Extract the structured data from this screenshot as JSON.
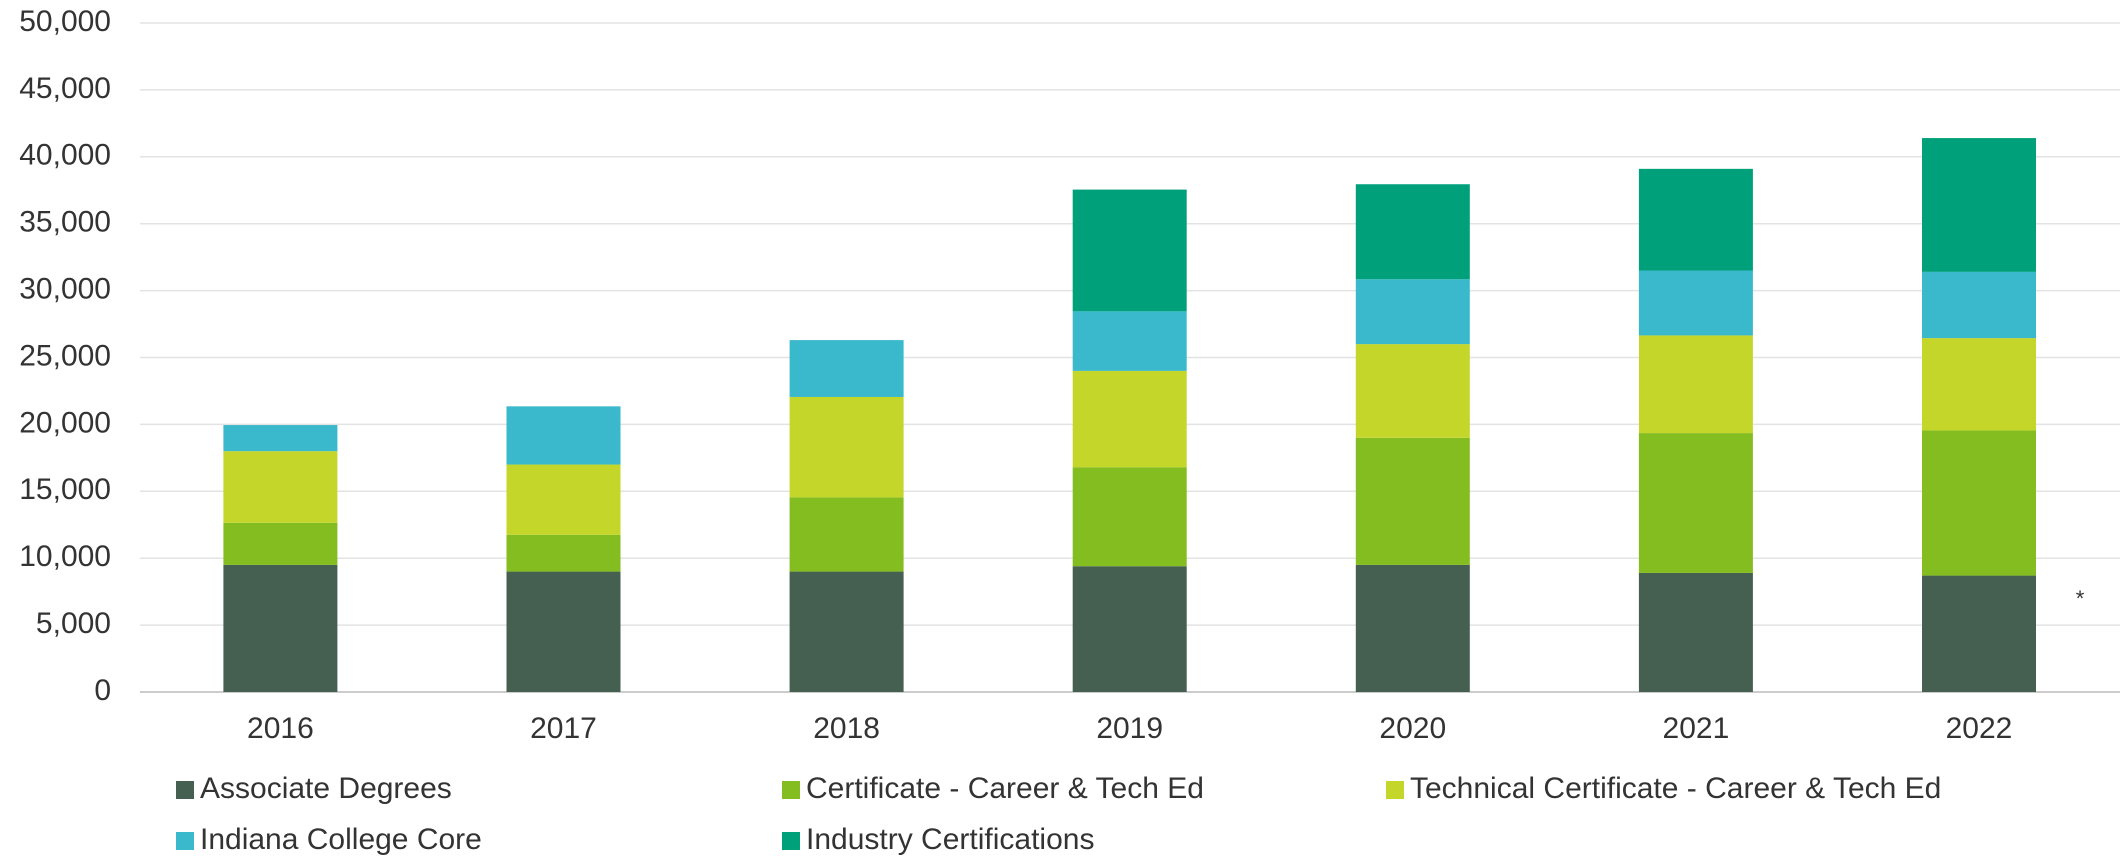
{
  "chart_data": {
    "type": "stacked_bar",
    "categories": [
      "2016",
      "2017",
      "2018",
      "2019",
      "2020",
      "2021",
      "2022"
    ],
    "series": [
      {
        "name": "Associate Degrees",
        "color": "#455f50",
        "values": [
          9500,
          9000,
          9000,
          9400,
          9500,
          8900,
          8700
        ]
      },
      {
        "name": "Certificate - Career & Tech Ed",
        "color": "#84bd1f",
        "values": [
          3150,
          2750,
          5550,
          7400,
          9500,
          10450,
          10850
        ]
      },
      {
        "name": "Technical Certificate - Career & Tech Ed",
        "color": "#c5d62b",
        "values": [
          5350,
          5250,
          7500,
          7200,
          7000,
          7300,
          6900
        ]
      },
      {
        "name": "Indiana College Core",
        "color": "#3ab8cc",
        "values": [
          1950,
          4350,
          4250,
          4450,
          4850,
          4850,
          4950
        ]
      },
      {
        "name": "Industry Certifications",
        "color": "#00a07a",
        "values": [
          null,
          null,
          null,
          9100,
          7100,
          7600,
          10000
        ]
      }
    ],
    "ylim": [
      0,
      50000
    ],
    "yticks": [
      0,
      {
        "value": 5000,
        "label": "5,000"
      },
      {
        "value": 10000,
        "label": "10,000"
      },
      {
        "value": 15000,
        "label": "15,000"
      },
      {
        "value": 20000,
        "label": "20,000"
      },
      {
        "value": 25000,
        "label": "25,000"
      },
      {
        "value": 30000,
        "label": "30,000"
      },
      {
        "value": 35000,
        "label": "35,000"
      },
      {
        "value": 40000,
        "label": "40,000"
      },
      {
        "value": 45000,
        "label": "45,000"
      },
      {
        "value": 50000,
        "label": "50,000"
      }
    ],
    "grid": true,
    "annotation": "*",
    "legend": "bottom"
  }
}
